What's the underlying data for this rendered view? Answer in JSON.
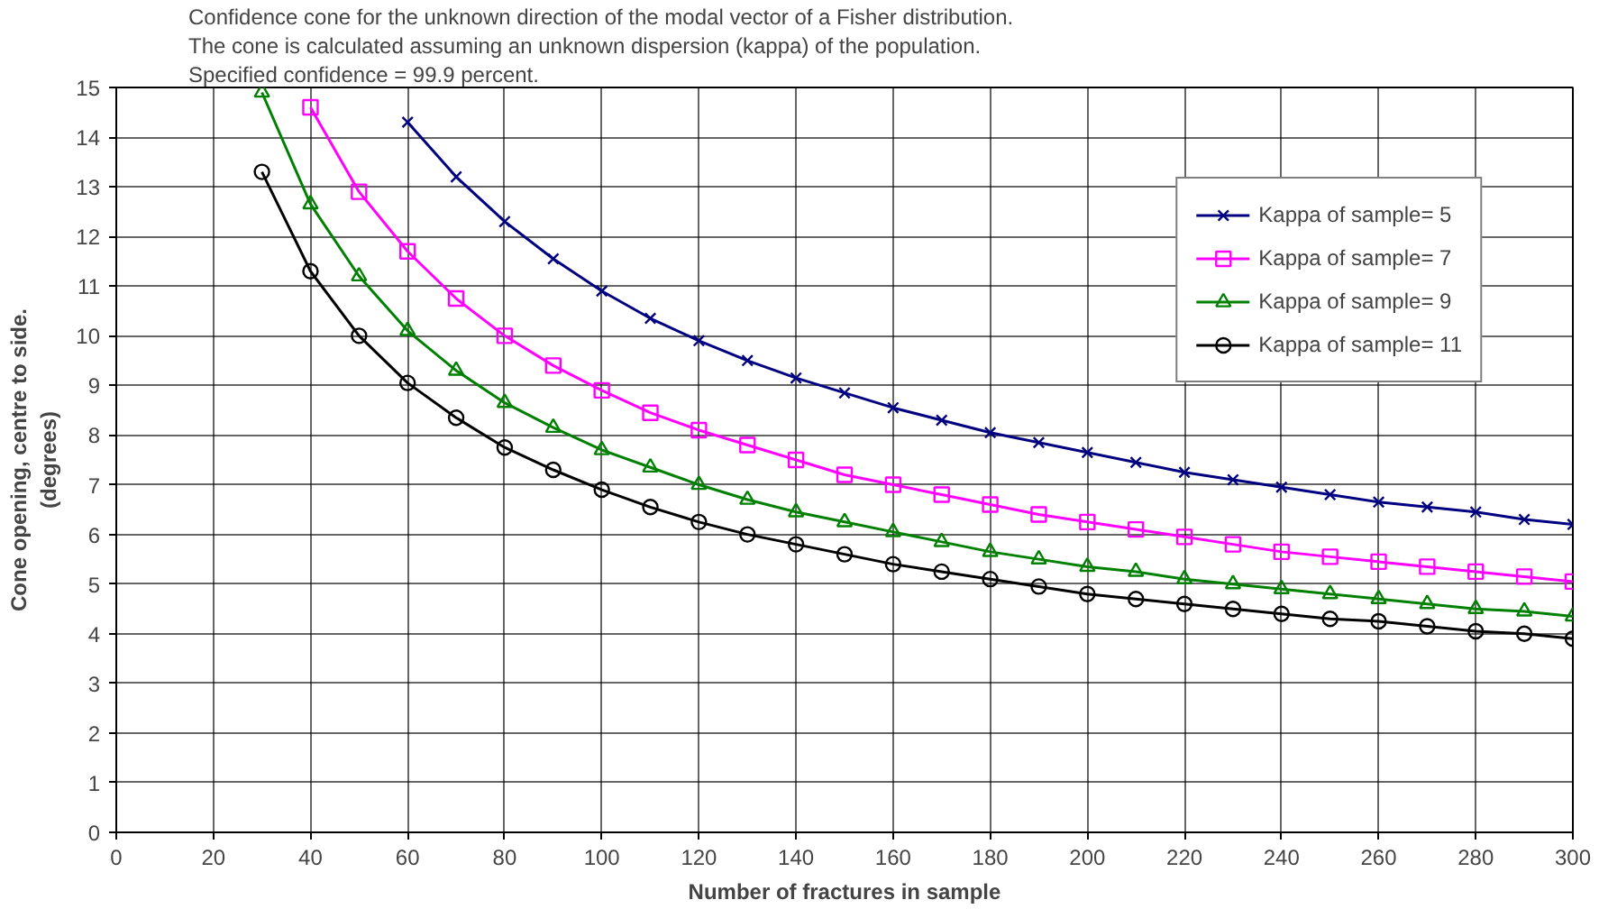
{
  "chart_data": {
    "type": "line",
    "title": "Confidence cone for the unknown direction of the modal vector of a Fisher distribution.",
    "subtitle": "The cone is calculated assuming an unknown dispersion (kappa) of the population.",
    "annotations": [
      "Specified confidence = 99.9 percent."
    ],
    "xlabel": "Number of fractures in sample",
    "ylabel": "Cone opening, centre to side.\n(degrees)",
    "xlim": [
      0,
      300
    ],
    "ylim": [
      0,
      15
    ],
    "xticks": [
      0,
      20,
      40,
      60,
      80,
      100,
      120,
      140,
      160,
      180,
      200,
      220,
      240,
      260,
      280,
      300
    ],
    "yticks": [
      0,
      1,
      2,
      3,
      4,
      5,
      6,
      7,
      8,
      9,
      10,
      11,
      12,
      13,
      14,
      15
    ],
    "grid": true,
    "legend": "top right",
    "series": [
      {
        "name": "Kappa of sample= 5",
        "color": "#000080",
        "marker": "cross",
        "x": [
          60,
          70,
          80,
          90,
          100,
          110,
          120,
          130,
          140,
          150,
          160,
          170,
          180,
          190,
          200,
          210,
          220,
          230,
          240,
          250,
          260,
          270,
          280,
          290,
          300
        ],
        "values": [
          14.3,
          13.2,
          12.3,
          11.55,
          10.9,
          10.35,
          9.9,
          9.5,
          9.15,
          8.85,
          8.55,
          8.3,
          8.05,
          7.85,
          7.65,
          7.45,
          7.25,
          7.1,
          6.95,
          6.8,
          6.65,
          6.55,
          6.45,
          6.3,
          6.2
        ]
      },
      {
        "name": "Kappa of sample= 7",
        "color": "#ff00ff",
        "marker": "square",
        "x": [
          40,
          50,
          60,
          70,
          80,
          90,
          100,
          110,
          120,
          130,
          140,
          150,
          160,
          170,
          180,
          190,
          200,
          210,
          220,
          230,
          240,
          250,
          260,
          270,
          280,
          290,
          300
        ],
        "values": [
          14.6,
          12.9,
          11.7,
          10.75,
          10.0,
          9.4,
          8.9,
          8.45,
          8.1,
          7.8,
          7.5,
          7.2,
          7.0,
          6.8,
          6.6,
          6.4,
          6.25,
          6.1,
          5.95,
          5.8,
          5.65,
          5.55,
          5.45,
          5.35,
          5.25,
          5.15,
          5.05
        ]
      },
      {
        "name": "Kappa of sample= 9",
        "color": "#008000",
        "marker": "triangle",
        "x": [
          30,
          40,
          50,
          60,
          70,
          80,
          90,
          100,
          110,
          120,
          130,
          140,
          150,
          160,
          170,
          180,
          190,
          200,
          210,
          220,
          230,
          240,
          250,
          260,
          270,
          280,
          290,
          300
        ],
        "values": [
          14.9,
          12.65,
          11.2,
          10.1,
          9.3,
          8.65,
          8.15,
          7.7,
          7.35,
          7.0,
          6.7,
          6.45,
          6.25,
          6.05,
          5.85,
          5.65,
          5.5,
          5.35,
          5.25,
          5.1,
          5.0,
          4.9,
          4.8,
          4.7,
          4.6,
          4.5,
          4.45,
          4.35
        ]
      },
      {
        "name": "Kappa of sample= 11",
        "color": "#000000",
        "marker": "circle",
        "x": [
          30,
          40,
          50,
          60,
          70,
          80,
          90,
          100,
          110,
          120,
          130,
          140,
          150,
          160,
          170,
          180,
          190,
          200,
          210,
          220,
          230,
          240,
          250,
          260,
          270,
          280,
          290,
          300
        ],
        "values": [
          13.3,
          11.3,
          10.0,
          9.05,
          8.35,
          7.75,
          7.3,
          6.9,
          6.55,
          6.25,
          6.0,
          5.8,
          5.6,
          5.4,
          5.25,
          5.1,
          4.95,
          4.8,
          4.7,
          4.6,
          4.5,
          4.4,
          4.3,
          4.25,
          4.15,
          4.05,
          4.0,
          3.9
        ]
      }
    ]
  }
}
